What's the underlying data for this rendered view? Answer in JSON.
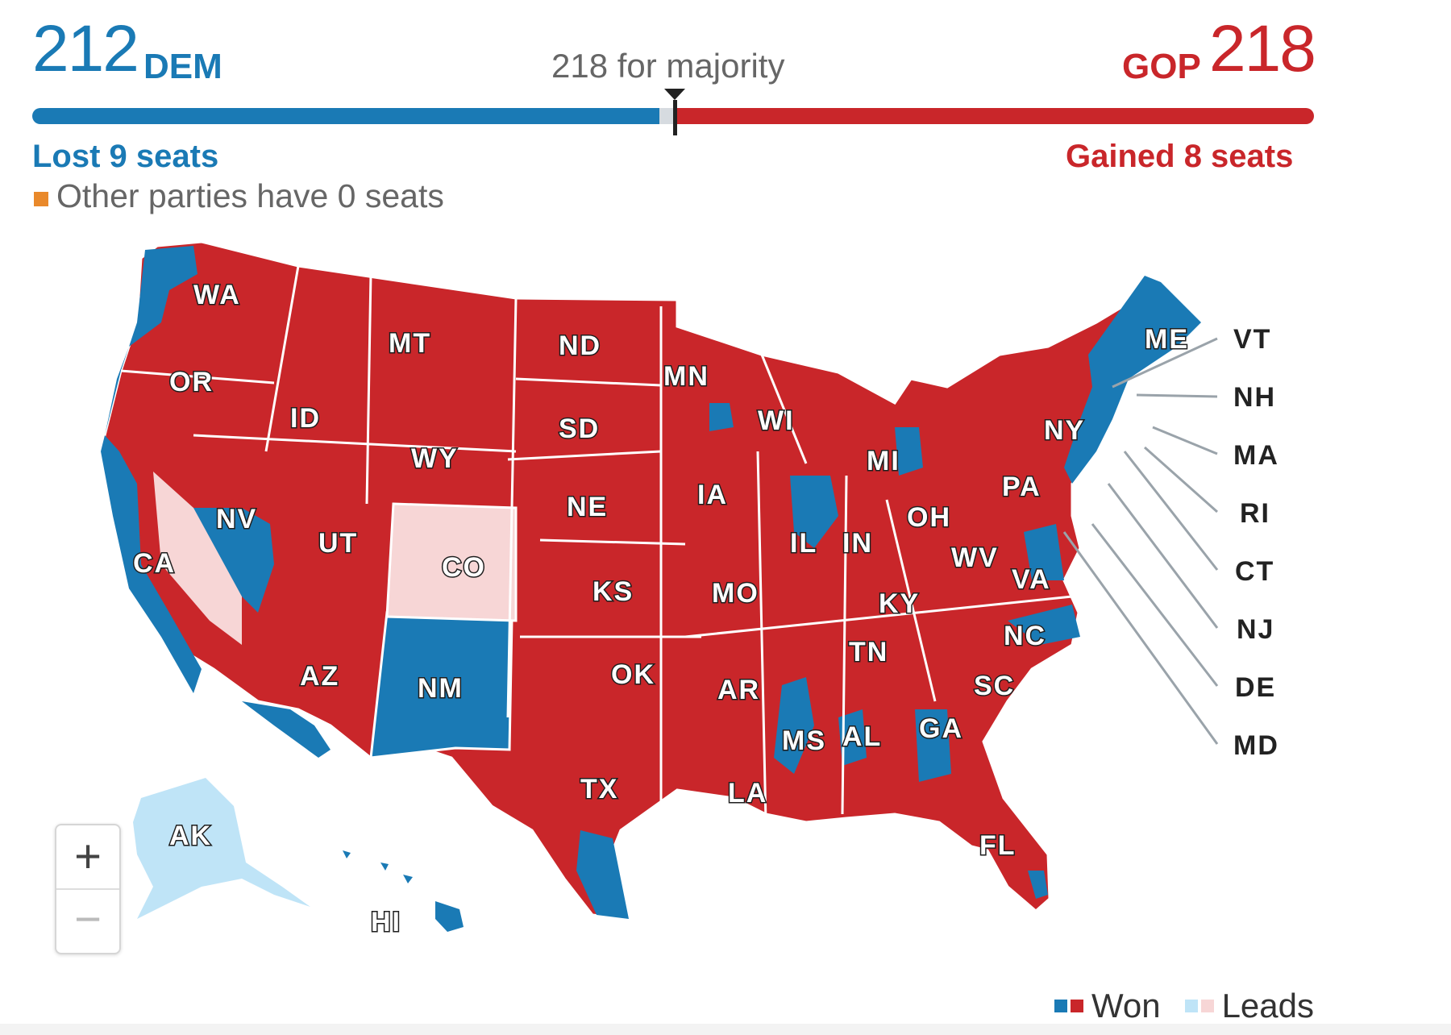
{
  "header": {
    "dem_count": "212",
    "dem_label": "DEM",
    "gop_label": "GOP",
    "gop_count": "218",
    "majority_label": "218 for majority",
    "dem_change": "Lost 9 seats",
    "gop_change": "Gained 8 seats",
    "other_parties": "Other parties have 0 seats"
  },
  "seat_bar": {
    "total_seats": 435,
    "dem_seats": 212,
    "gop_seats": 218,
    "uncalled_seats": 5,
    "majority_threshold": 218
  },
  "colors": {
    "dem_won": "#1a7ab5",
    "gop_won": "#c9262a",
    "dem_leads": "#bfe4f7",
    "gop_leads": "#f7d6d6",
    "other": "#e9892b",
    "uncalled": "#d6dbe0"
  },
  "map": {
    "state_labels": [
      "WA",
      "OR",
      "CA",
      "ID",
      "NV",
      "MT",
      "WY",
      "UT",
      "CO",
      "AZ",
      "NM",
      "ND",
      "SD",
      "NE",
      "KS",
      "OK",
      "TX",
      "MN",
      "IA",
      "MO",
      "AR",
      "LA",
      "WI",
      "IL",
      "MI",
      "IN",
      "OH",
      "KY",
      "TN",
      "MS",
      "AL",
      "GA",
      "FL",
      "SC",
      "NC",
      "VA",
      "WV",
      "PA",
      "NY",
      "ME",
      "AK",
      "HI"
    ],
    "northeast_callouts": [
      "VT",
      "NH",
      "MA",
      "RI",
      "CT",
      "NJ",
      "DE",
      "MD"
    ]
  },
  "zoom": {
    "in_label": "+",
    "out_label": "−"
  },
  "legend": {
    "won_label": "Won",
    "leads_label": "Leads"
  }
}
